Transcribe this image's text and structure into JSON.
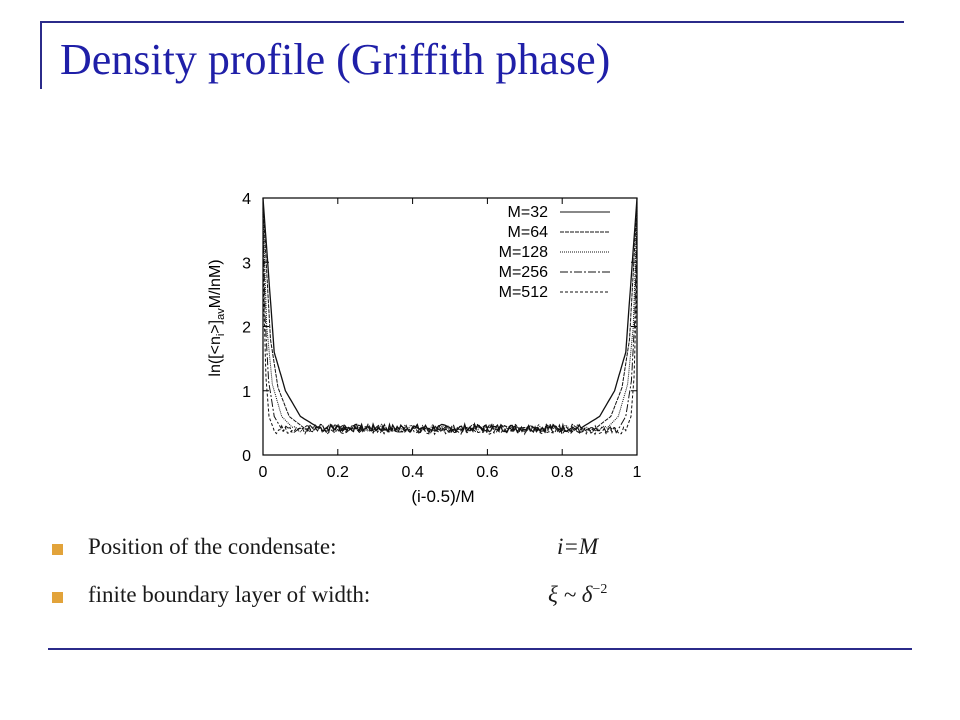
{
  "slide": {
    "title": "Density profile (Griffith phase)",
    "accent_color": "#1f1fa8",
    "bullet_color": "#e2a33a",
    "bullets": [
      {
        "text": "Position of the condensate:",
        "math": "i=M"
      },
      {
        "text": "finite boundary layer of width:",
        "math_base": "ξ ~ δ",
        "math_sup": "−2"
      }
    ]
  },
  "chart_data": {
    "type": "line",
    "xlabel": "(i-0.5)/M",
    "ylabel": "ln([<n_i>]_av M/lnM)",
    "xlim": [
      0,
      1
    ],
    "ylim": [
      0,
      4
    ],
    "x_ticks": [
      "0",
      "0.2",
      "0.4",
      "0.6",
      "0.8",
      "1"
    ],
    "y_ticks": [
      "0",
      "1",
      "2",
      "3",
      "4"
    ],
    "legend_position": "top-right",
    "plateau": 0.4,
    "series": [
      {
        "name": "M=32",
        "dash": "solid",
        "x": [
          0.0,
          0.03,
          0.06,
          0.1,
          0.15,
          0.85,
          0.9,
          0.94,
          0.97,
          1.0
        ],
        "y": [
          4.0,
          1.6,
          1.0,
          0.6,
          0.42,
          0.42,
          0.6,
          1.0,
          1.6,
          4.0
        ]
      },
      {
        "name": "M=64",
        "dash": "4,1",
        "x": [
          0.0,
          0.02,
          0.04,
          0.07,
          0.11,
          0.89,
          0.93,
          0.96,
          0.98,
          1.0
        ],
        "y": [
          3.9,
          1.8,
          1.05,
          0.6,
          0.42,
          0.42,
          0.6,
          1.05,
          1.8,
          3.9
        ]
      },
      {
        "name": "M=128",
        "dash": "1,1",
        "x": [
          0.0,
          0.01,
          0.025,
          0.05,
          0.08,
          0.92,
          0.95,
          0.975,
          0.99,
          1.0
        ],
        "y": [
          3.8,
          2.0,
          1.1,
          0.6,
          0.42,
          0.42,
          0.6,
          1.1,
          2.0,
          3.8
        ]
      },
      {
        "name": "M=256",
        "dash": "8,2,2,2",
        "x": [
          0.0,
          0.006,
          0.015,
          0.03,
          0.05,
          0.95,
          0.97,
          0.985,
          0.994,
          1.0
        ],
        "y": [
          3.7,
          2.1,
          1.15,
          0.6,
          0.4,
          0.4,
          0.6,
          1.15,
          2.1,
          3.7
        ]
      },
      {
        "name": "M=512",
        "dash": "3,2",
        "x": [
          0.0,
          0.003,
          0.008,
          0.016,
          0.03,
          0.97,
          0.984,
          0.992,
          0.997,
          1.0
        ],
        "y": [
          3.6,
          2.2,
          1.2,
          0.6,
          0.38,
          0.38,
          0.6,
          1.2,
          2.2,
          3.6
        ]
      }
    ]
  }
}
